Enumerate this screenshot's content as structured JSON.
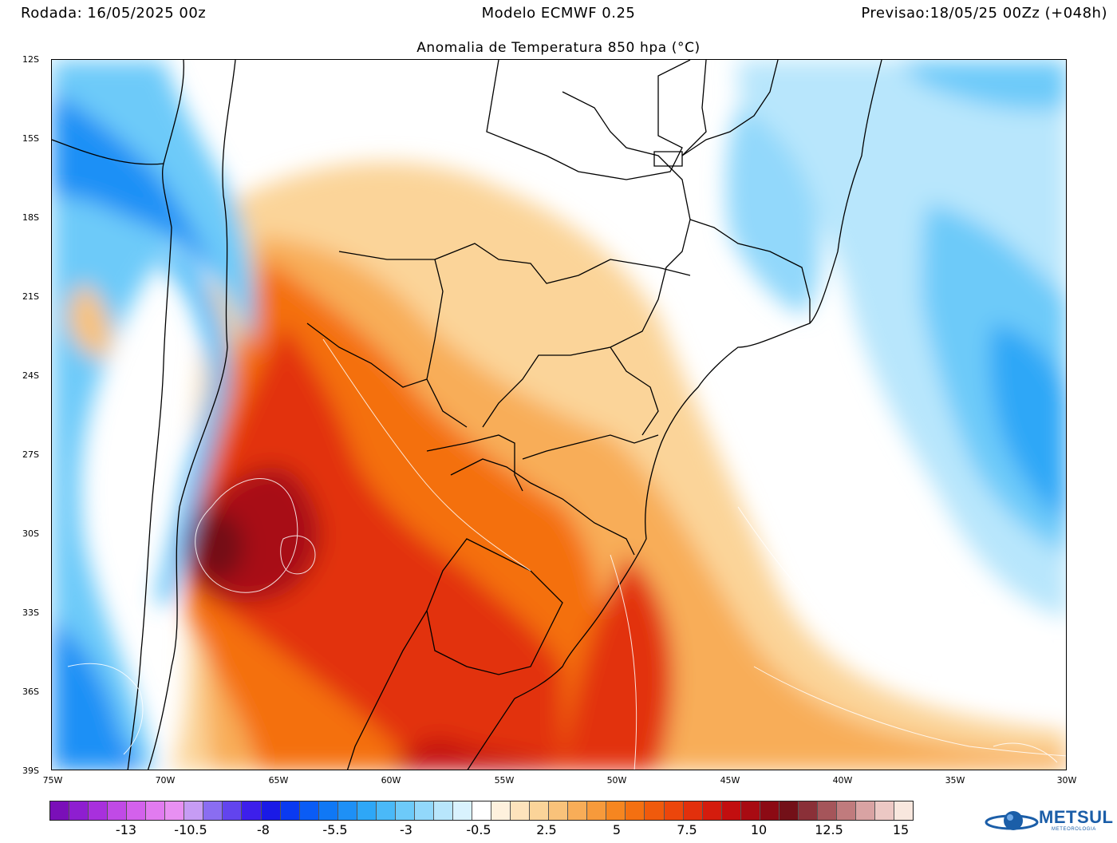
{
  "header": {
    "left": "Rodada: 16/05/2025 00z",
    "center": "Modelo ECMWF 0.25",
    "right": "Previsao:18/05/25 00Zz (+048h)"
  },
  "title": "Anomalia de Temperatura 850 hpa (°C)",
  "axes": {
    "lat_labels": [
      "12S",
      "15S",
      "18S",
      "21S",
      "24S",
      "27S",
      "30S",
      "33S",
      "36S",
      "39S"
    ],
    "lon_labels": [
      "75W",
      "70W",
      "65W",
      "60W",
      "55W",
      "50W",
      "45W",
      "40W",
      "35W",
      "30W"
    ]
  },
  "scale": {
    "labels": [
      "-13",
      "-10.5",
      "-8",
      "-5.5",
      "-3",
      "-0.5",
      "2.5",
      "5",
      "7.5",
      "10",
      "12.5",
      "15"
    ],
    "colors": [
      "#7a0fb8",
      "#8e1ed0",
      "#a830dd",
      "#c04ae6",
      "#d361ec",
      "#e17bf0",
      "#e890f2",
      "#c69cf4",
      "#8a6df1",
      "#6244ee",
      "#3d1feb",
      "#1a1ae6",
      "#0a3af0",
      "#0a5cf5",
      "#1078f5",
      "#1e90f6",
      "#2ea7f7",
      "#4ab9f8",
      "#6dcaf9",
      "#92d8fb",
      "#b8e6fc",
      "#d9f2fe",
      "#ffffff",
      "#fef1dd",
      "#fde3bc",
      "#fbd499",
      "#f9c27a",
      "#f8ad58",
      "#f79a3b",
      "#f68620",
      "#f47011",
      "#f05a0c",
      "#ec460b",
      "#e2300c",
      "#d41c0d",
      "#c20e0f",
      "#a80b12",
      "#8c0a14",
      "#731018",
      "#8a3038",
      "#a5555a",
      "#c07b7d",
      "#d9a3a3",
      "#ecc8c4",
      "#f8e7de"
    ]
  },
  "logo": {
    "name": "METSUL",
    "sub": "METEOROLOGIA"
  }
}
